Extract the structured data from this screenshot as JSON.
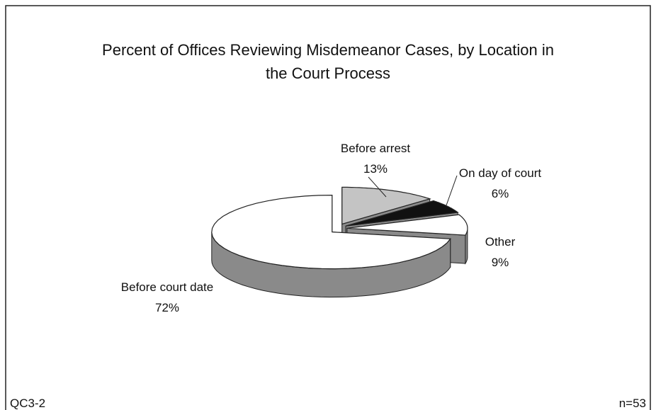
{
  "chart_data": {
    "type": "pie",
    "title": "Percent of Offices Reviewing Misdemeanor Cases, by Location in the Court Process",
    "categories": [
      "Before arrest",
      "On day of court",
      "Other",
      "Before court date"
    ],
    "values": [
      13,
      6,
      9,
      72
    ],
    "value_labels": [
      "13%",
      "6%",
      "9%",
      "72%"
    ],
    "colors": [
      "#c4c4c4",
      "#111111",
      "#ffffff",
      "#ffffff"
    ],
    "side_color": "#8a8a8a",
    "annotations": [
      "QC3-2",
      "n=53"
    ]
  }
}
